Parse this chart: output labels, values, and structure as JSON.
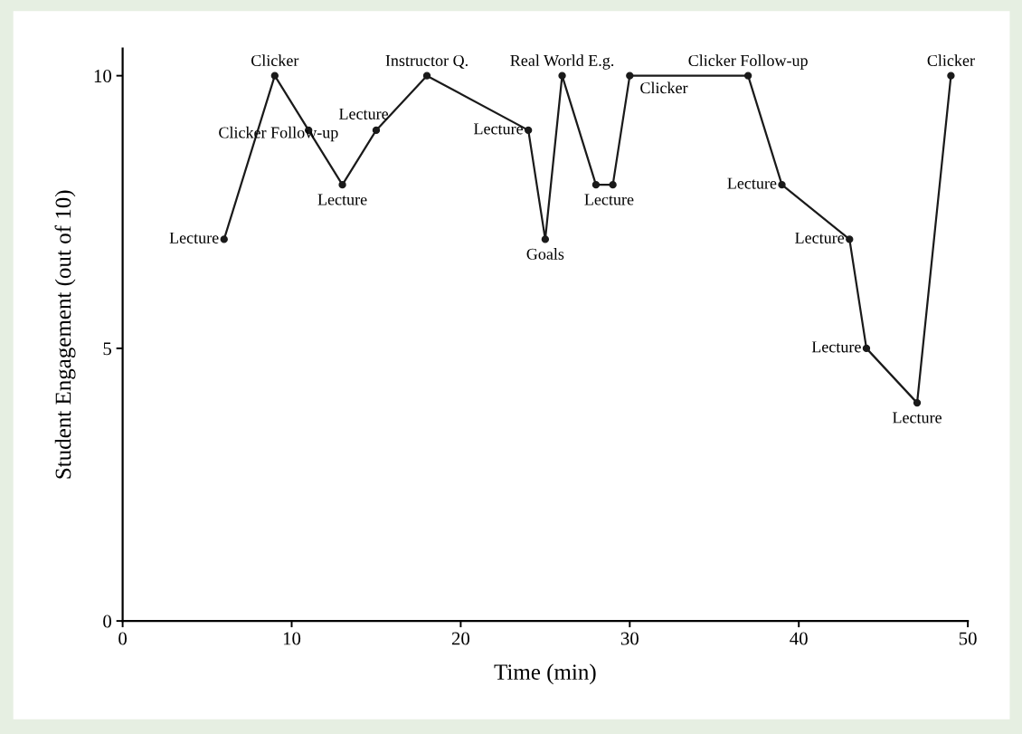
{
  "chart_data": {
    "type": "line",
    "xlabel": "Time (min)",
    "ylabel": "Student Engagement (out of 10)",
    "x": [
      6,
      9,
      11,
      13,
      15,
      18,
      24,
      25,
      26,
      28,
      29,
      30,
      37,
      39,
      43,
      44,
      47,
      49
    ],
    "values": [
      7,
      10,
      9,
      8,
      9,
      10,
      9,
      7,
      10,
      8,
      8,
      10,
      10,
      8,
      7,
      5,
      4,
      10
    ],
    "color": "#1a1a1a",
    "marker": "circle",
    "line_style": "solid",
    "grid": false,
    "xlim": [
      0,
      50
    ],
    "xticks": [
      0,
      10,
      20,
      30,
      40,
      50
    ],
    "ylim": [
      0,
      10.5
    ],
    "yticks": [
      0,
      5,
      10
    ],
    "annotations": [
      {
        "text": "Lecture",
        "x": 6,
        "y": 7
      },
      {
        "text": "Clicker",
        "x": 9,
        "y": 10
      },
      {
        "text": "Clicker Follow-up",
        "x": 11,
        "y": 9
      },
      {
        "text": "Lecture",
        "x": 13,
        "y": 8
      },
      {
        "text": "Lecture",
        "x": 15,
        "y": 9
      },
      {
        "text": "Instructor Q.",
        "x": 18,
        "y": 10
      },
      {
        "text": "Lecture",
        "x": 24,
        "y": 9
      },
      {
        "text": "Goals",
        "x": 25,
        "y": 7
      },
      {
        "text": "Real World E.g.",
        "x": 26,
        "y": 10
      },
      {
        "text": "Lecture",
        "x": 29,
        "y": 8
      },
      {
        "text": "Clicker",
        "x": 30,
        "y": 10
      },
      {
        "text": "Clicker Follow-up",
        "x": 37,
        "y": 10
      },
      {
        "text": "Lecture",
        "x": 39,
        "y": 8
      },
      {
        "text": "Lecture",
        "x": 43,
        "y": 7
      },
      {
        "text": "Lecture",
        "x": 44,
        "y": 5
      },
      {
        "text": "Lecture",
        "x": 47,
        "y": 4
      },
      {
        "text": "Clicker",
        "x": 49,
        "y": 10
      }
    ]
  }
}
